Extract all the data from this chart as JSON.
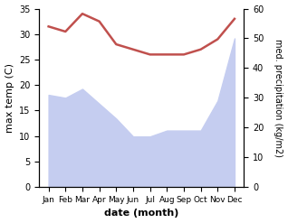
{
  "months": [
    "Jan",
    "Feb",
    "Mar",
    "Apr",
    "May",
    "Jun",
    "Jul",
    "Aug",
    "Sep",
    "Oct",
    "Nov",
    "Dec"
  ],
  "x": [
    0,
    1,
    2,
    3,
    4,
    5,
    6,
    7,
    8,
    9,
    10,
    11
  ],
  "temperature": [
    31.5,
    30.5,
    34.0,
    32.5,
    28.0,
    27.0,
    26.0,
    26.0,
    26.0,
    27.0,
    29.0,
    33.0
  ],
  "precipitation": [
    31.0,
    30.0,
    33.0,
    28.0,
    23.0,
    17.0,
    17.0,
    19.0,
    19.0,
    19.0,
    29.0,
    50.0
  ],
  "temp_color": "#c0504d",
  "precip_fill_color": "#c5cdf0",
  "temp_ylim": [
    0,
    35
  ],
  "precip_ylim": [
    0,
    60
  ],
  "temp_yticks": [
    0,
    5,
    10,
    15,
    20,
    25,
    30,
    35
  ],
  "precip_yticks": [
    0,
    10,
    20,
    30,
    40,
    50,
    60
  ],
  "xlabel": "date (month)",
  "ylabel_left": "max temp (C)",
  "ylabel_right": "med. precipitation (kg/m2)",
  "background_color": "#ffffff"
}
